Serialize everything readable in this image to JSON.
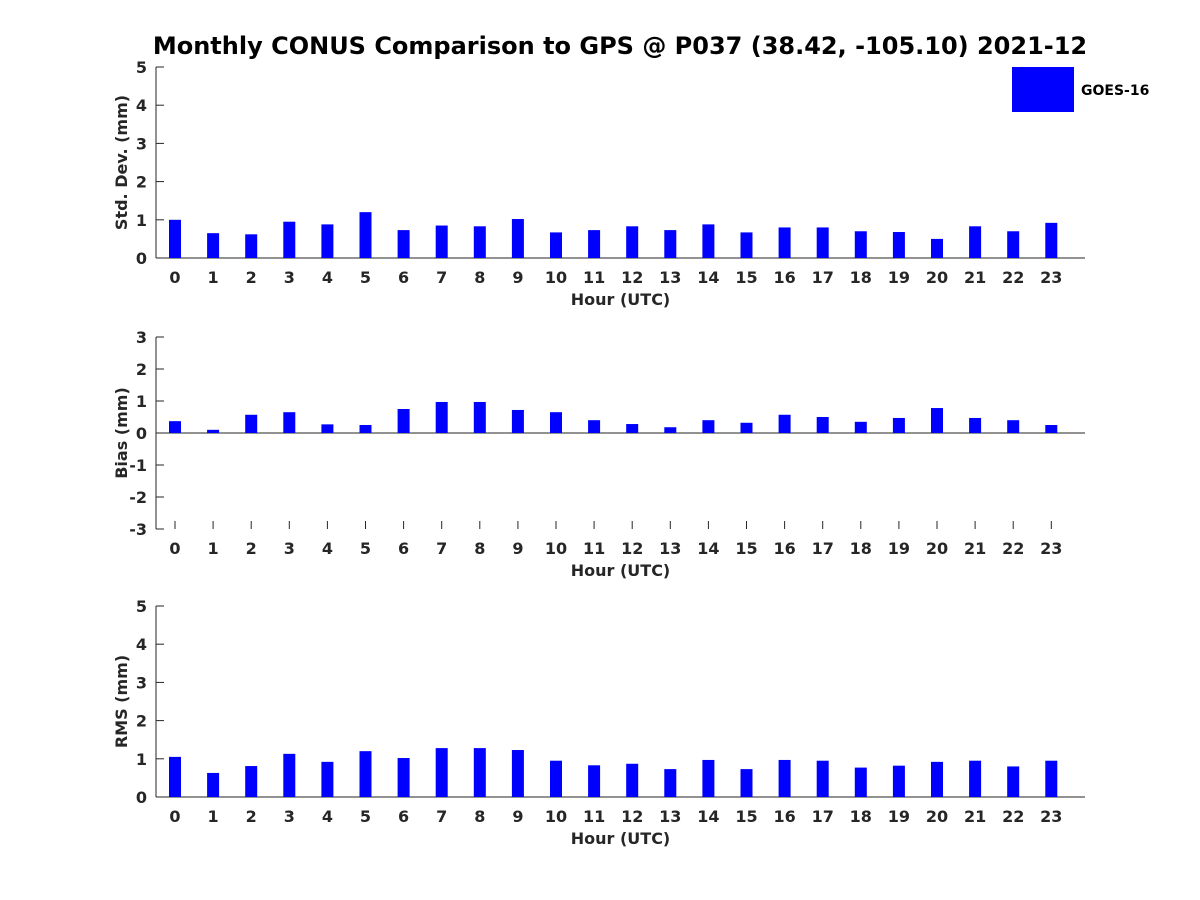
{
  "title": "Monthly CONUS Comparison to GPS @ P037 (38.42, -105.10) 2021-12",
  "legend": {
    "label": "GOES-16",
    "position": "top-right",
    "color": "#0000ff"
  },
  "chart_data": [
    {
      "type": "bar",
      "name": "std",
      "xlabel": "Hour (UTC)",
      "ylabel": "Std. Dev. (mm)",
      "ylim": [
        0,
        5
      ],
      "yticks": [
        0,
        1,
        2,
        3,
        4,
        5
      ],
      "categories": [
        "0",
        "1",
        "2",
        "3",
        "4",
        "5",
        "6",
        "7",
        "8",
        "9",
        "10",
        "11",
        "12",
        "13",
        "14",
        "15",
        "16",
        "17",
        "18",
        "19",
        "20",
        "21",
        "22",
        "23"
      ],
      "series": [
        {
          "name": "GOES-16",
          "color": "#0000ff",
          "values": [
            1.0,
            0.65,
            0.62,
            0.95,
            0.88,
            1.2,
            0.73,
            0.85,
            0.83,
            1.02,
            0.67,
            0.73,
            0.83,
            0.73,
            0.88,
            0.67,
            0.8,
            0.8,
            0.7,
            0.68,
            0.5,
            0.83,
            0.7,
            0.92
          ]
        }
      ],
      "grid": false
    },
    {
      "type": "bar",
      "name": "bias",
      "xlabel": "Hour (UTC)",
      "ylabel": "Bias (mm)",
      "ylim": [
        -3,
        3
      ],
      "yticks": [
        -3,
        -2,
        -1,
        0,
        1,
        2,
        3
      ],
      "categories": [
        "0",
        "1",
        "2",
        "3",
        "4",
        "5",
        "6",
        "7",
        "8",
        "9",
        "10",
        "11",
        "12",
        "13",
        "14",
        "15",
        "16",
        "17",
        "18",
        "19",
        "20",
        "21",
        "22",
        "23"
      ],
      "series": [
        {
          "name": "GOES-16",
          "color": "#0000ff",
          "values": [
            0.37,
            0.1,
            0.57,
            0.65,
            0.27,
            0.25,
            0.75,
            0.97,
            0.97,
            0.72,
            0.65,
            0.4,
            0.28,
            0.18,
            0.4,
            0.32,
            0.57,
            0.5,
            0.35,
            0.47,
            0.78,
            0.47,
            0.4,
            0.25
          ]
        }
      ],
      "grid": false
    },
    {
      "type": "bar",
      "name": "rms",
      "xlabel": "Hour (UTC)",
      "ylabel": "RMS (mm)",
      "ylim": [
        0,
        5
      ],
      "yticks": [
        0,
        1,
        2,
        3,
        4,
        5
      ],
      "categories": [
        "0",
        "1",
        "2",
        "3",
        "4",
        "5",
        "6",
        "7",
        "8",
        "9",
        "10",
        "11",
        "12",
        "13",
        "14",
        "15",
        "16",
        "17",
        "18",
        "19",
        "20",
        "21",
        "22",
        "23"
      ],
      "series": [
        {
          "name": "GOES-16",
          "color": "#0000ff",
          "values": [
            1.05,
            0.63,
            0.81,
            1.13,
            0.92,
            1.2,
            1.02,
            1.28,
            1.28,
            1.23,
            0.95,
            0.83,
            0.87,
            0.73,
            0.97,
            0.73,
            0.97,
            0.95,
            0.77,
            0.82,
            0.92,
            0.95,
            0.8,
            0.95
          ]
        }
      ],
      "grid": false
    }
  ]
}
